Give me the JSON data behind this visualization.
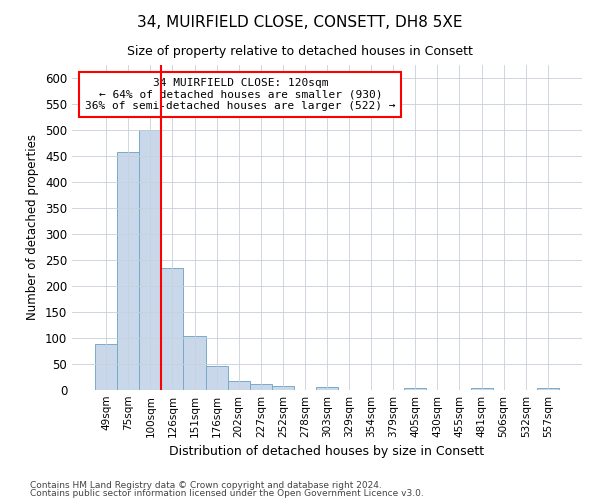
{
  "title": "34, MUIRFIELD CLOSE, CONSETT, DH8 5XE",
  "subtitle": "Size of property relative to detached houses in Consett",
  "xlabel": "Distribution of detached houses by size in Consett",
  "ylabel": "Number of detached properties",
  "footnote1": "Contains HM Land Registry data © Crown copyright and database right 2024.",
  "footnote2": "Contains public sector information licensed under the Open Government Licence v3.0.",
  "bar_labels": [
    "49sqm",
    "75sqm",
    "100sqm",
    "126sqm",
    "151sqm",
    "176sqm",
    "202sqm",
    "227sqm",
    "252sqm",
    "278sqm",
    "303sqm",
    "329sqm",
    "354sqm",
    "379sqm",
    "405sqm",
    "430sqm",
    "455sqm",
    "481sqm",
    "506sqm",
    "532sqm",
    "557sqm"
  ],
  "bar_values": [
    88,
    458,
    500,
    235,
    103,
    47,
    18,
    12,
    8,
    0,
    5,
    0,
    0,
    0,
    3,
    0,
    0,
    3,
    0,
    0,
    3
  ],
  "bar_color": "#c8d8ea",
  "bar_edge_color": "#7aaac8",
  "vline_x": 3.0,
  "vline_color": "red",
  "annotation_line1": "34 MUIRFIELD CLOSE: 120sqm",
  "annotation_line2": "← 64% of detached houses are smaller (930)",
  "annotation_line3": "36% of semi-detached houses are larger (522) →",
  "annotation_box_color": "red",
  "annotation_bg": "white",
  "ylim": [
    0,
    625
  ],
  "yticks": [
    0,
    50,
    100,
    150,
    200,
    250,
    300,
    350,
    400,
    450,
    500,
    550,
    600
  ],
  "bg_color": "#ffffff",
  "plot_bg": "#ffffff",
  "grid_color": "#c8d0dc"
}
